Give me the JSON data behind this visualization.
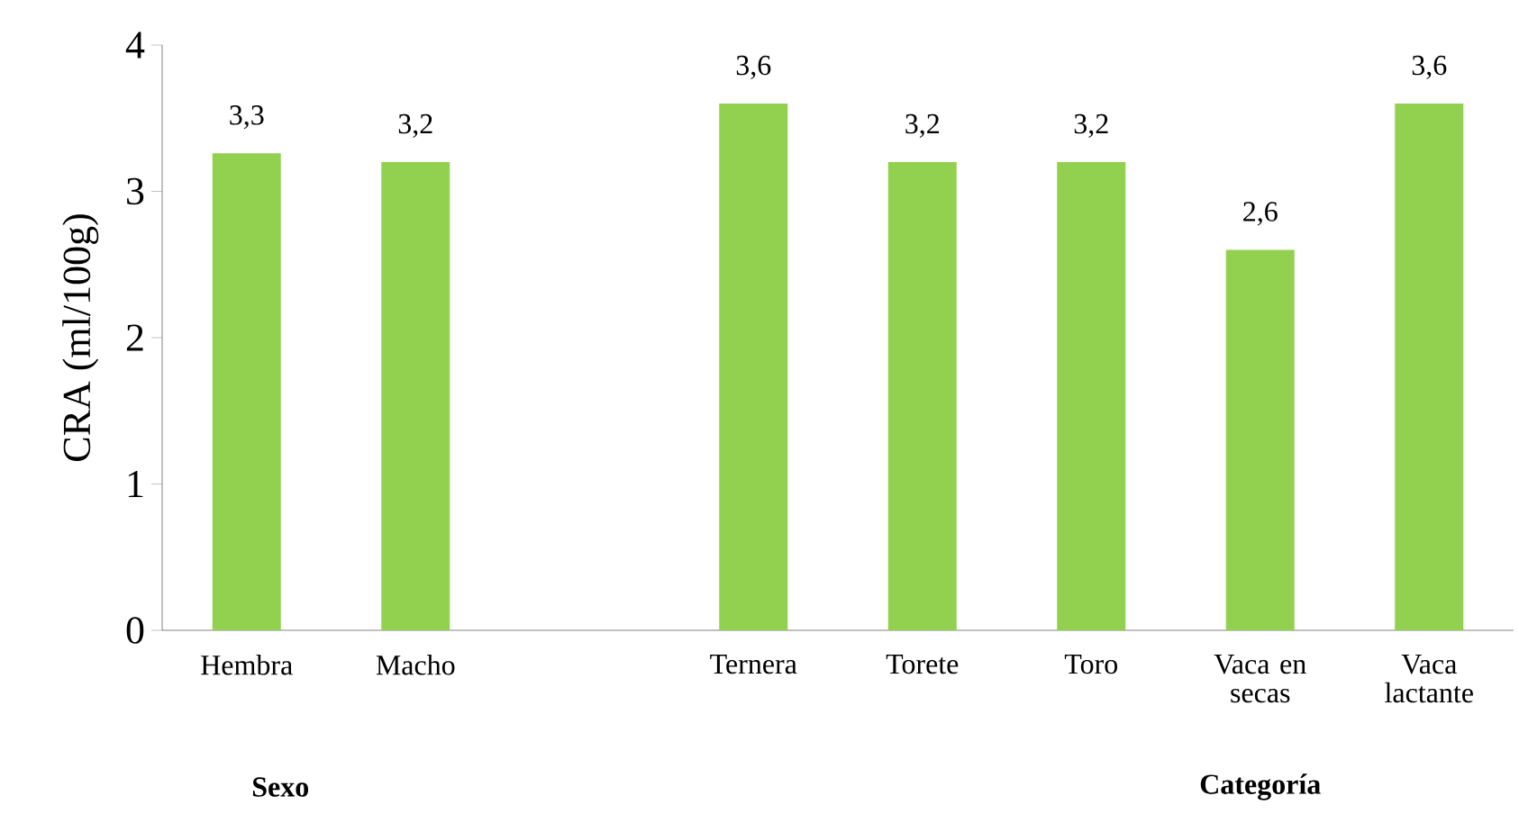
{
  "chart_data": {
    "type": "bar",
    "ylabel": "CRA (ml/100g)",
    "categories": [
      "Hembra",
      "Macho",
      null,
      "Ternera",
      "Torete",
      "Toro",
      "Vaca en secas",
      "Vaca lactante"
    ],
    "values": [
      3.26,
      3.2,
      null,
      3.6,
      3.2,
      3.2,
      2.6,
      3.6
    ],
    "value_labels": [
      "3,3",
      "3,2",
      null,
      "3,6",
      "3,2",
      "3,2",
      "2,6",
      "3,6"
    ],
    "color": "#92d050",
    "ylim": [
      0,
      4
    ],
    "yticks": [
      0,
      1,
      2,
      3,
      4
    ],
    "annotations": [
      "Sexo",
      "Categoría"
    ]
  }
}
